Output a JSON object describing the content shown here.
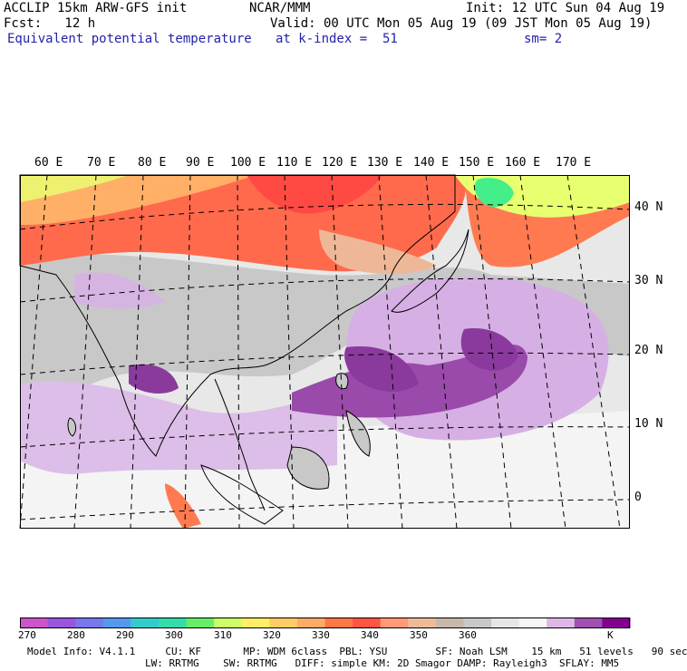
{
  "header": {
    "left_line1": "ACCLIP 15km ARW-GFS init",
    "left_line2": "Fcst:   12 h",
    "field_name": "Equivalent potential temperature",
    "center_line1": "NCAR/MMM",
    "init": "Init: 12 UTC Sun 04 Aug 19",
    "valid": "Valid: 00 UTC Mon 05 Aug 19 (09 JST Mon 05 Aug 19)",
    "level": "at k-index =  51",
    "smooth": "sm= 2"
  },
  "map": {
    "lon_labels": [
      "60 E",
      "70 E",
      "80 E",
      "90 E",
      "100 E",
      "110 E",
      "120 E",
      "130 E",
      "140 E",
      "150 E",
      "160 E",
      "170 E"
    ],
    "lat_labels": [
      "40 N",
      "30 N",
      "20 N",
      "10 N",
      "0"
    ]
  },
  "colorbar": {
    "colors": [
      "#cc55cc",
      "#9955dd",
      "#7777ee",
      "#5599ee",
      "#33cccc",
      "#33ddaa",
      "#66ee66",
      "#ccff66",
      "#ffee66",
      "#ffcc66",
      "#ffaa66",
      "#ff7744",
      "#ff5544",
      "#ff9977",
      "#eebb99",
      "#c8b8aa",
      "#c8c8c8",
      "#e6e6e6",
      "#f6f6f6",
      "#ddb8e6",
      "#a050b0",
      "#800090"
    ],
    "labels": [
      "270",
      "280",
      "290",
      "300",
      "310",
      "320",
      "330",
      "340",
      "350",
      "360",
      "K"
    ]
  },
  "footer": {
    "line1": "Model Info: V4.1.1     CU: KF       MP: WDM 6class  PBL: YSU        SF: Noah LSM    15 km   51 levels   90 sec",
    "line2": "LW: RRTMG    SW: RRTMG   DIFF: simple KM: 2D Smagor DAMP: Rayleigh3  SFLAY: MM5"
  }
}
